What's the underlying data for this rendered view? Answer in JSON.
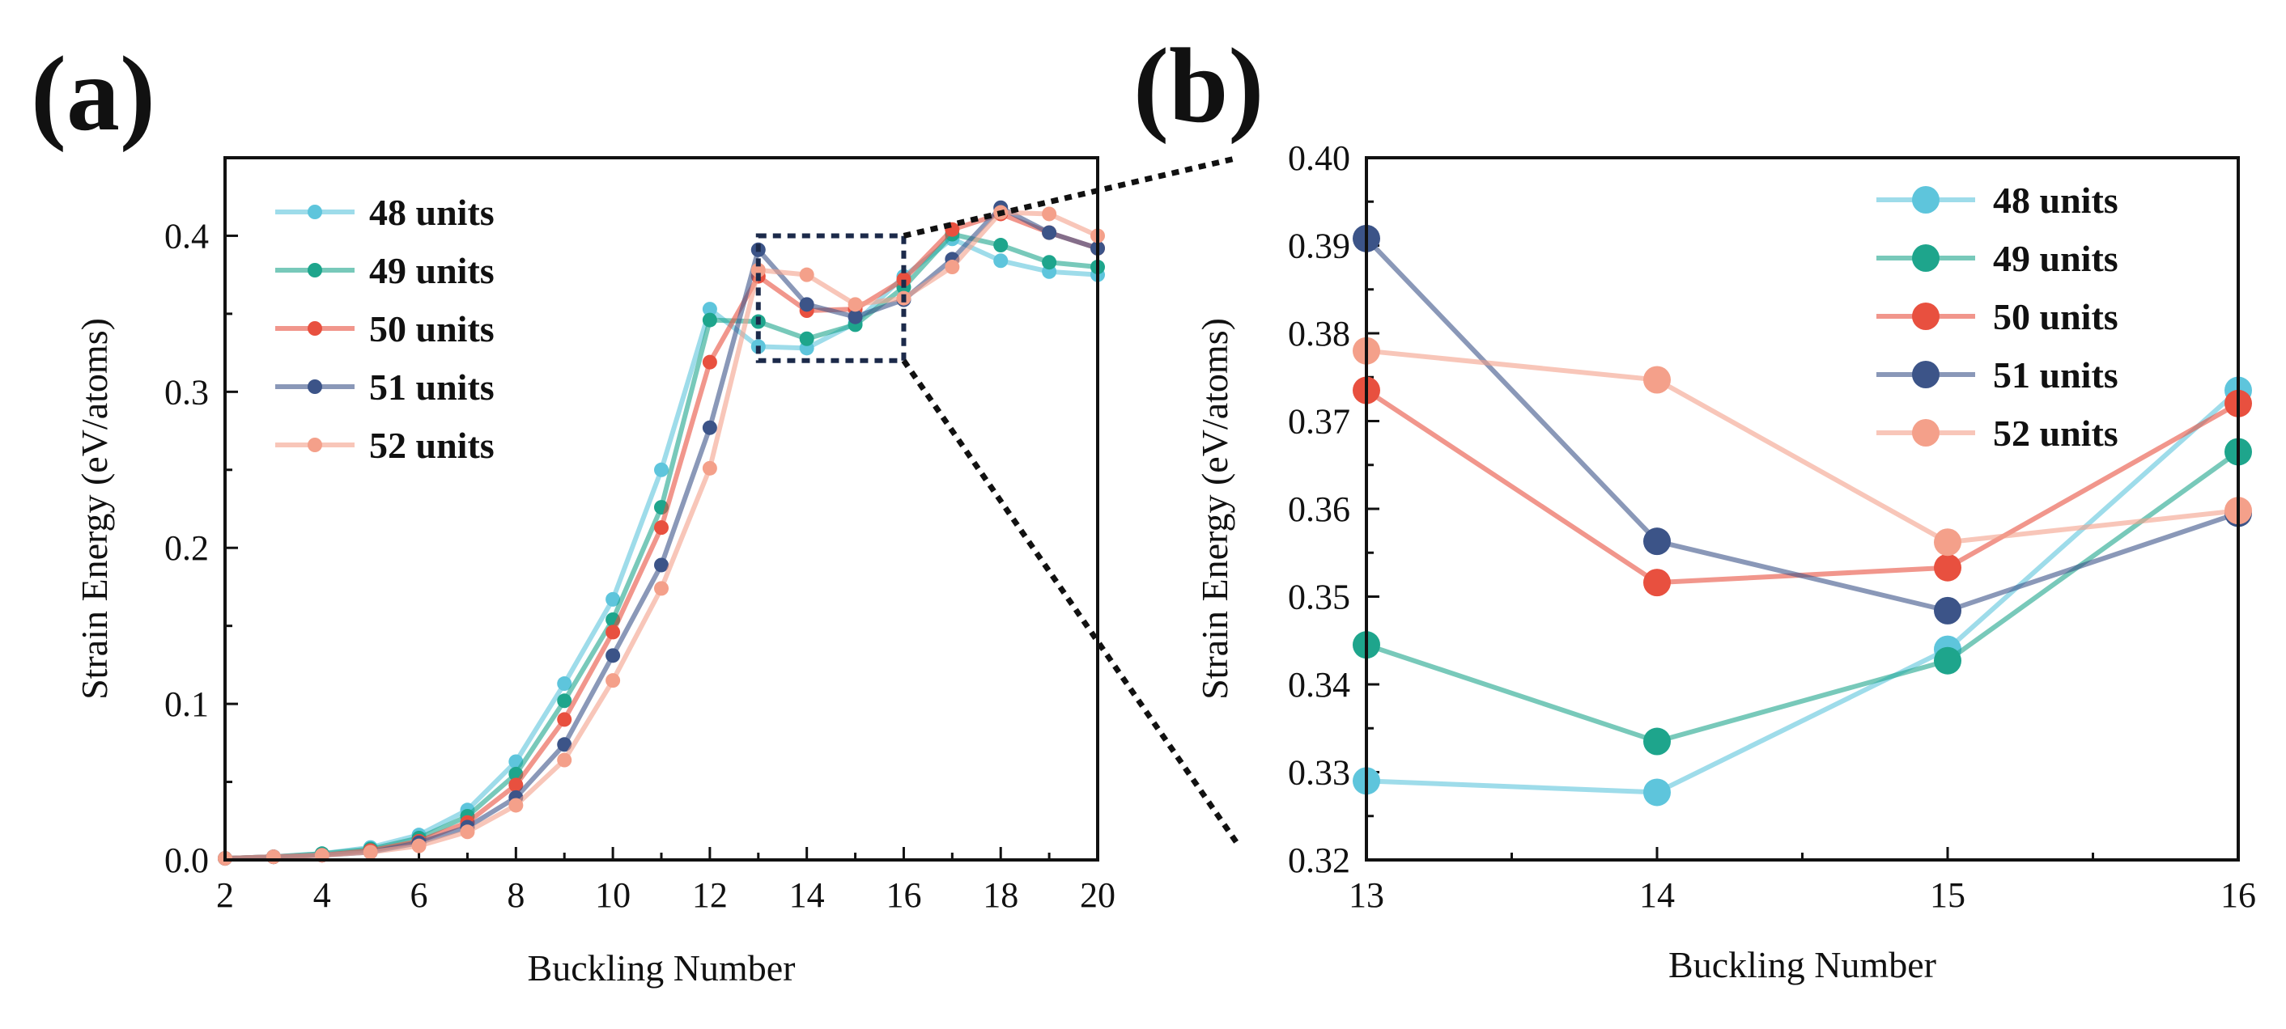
{
  "colors": {
    "48 units": "#5ec5dc",
    "49 units": "#1ea58c",
    "50 units": "#e8503f",
    "51 units": "#3c5488",
    "52 units": "#f4a08a",
    "axis": "#111111",
    "zoom_box": "#1c2a4a"
  },
  "chart_data": [
    {
      "panel": "(a)",
      "type": "line",
      "xlabel": "Buckling Number",
      "ylabel": "Strain Energy (eV/atoms)",
      "xlim": [
        2,
        20
      ],
      "ylim": [
        0,
        0.45
      ],
      "xticks": [
        "2",
        "4",
        "6",
        "8",
        "10",
        "12",
        "14",
        "16",
        "18",
        "20"
      ],
      "yticks": [
        "0.0",
        "0.1",
        "0.2",
        "0.3",
        "0.4"
      ],
      "legend_position": "top-left",
      "zoom_region": {
        "x": [
          13,
          16
        ],
        "y": [
          0.32,
          0.4
        ]
      },
      "x": [
        2,
        3,
        4,
        5,
        6,
        7,
        8,
        9,
        10,
        11,
        12,
        13,
        14,
        15,
        16,
        17,
        18,
        19,
        20
      ],
      "series": [
        {
          "name": "48 units",
          "values": [
            0.001,
            0.002,
            0.004,
            0.008,
            0.016,
            0.032,
            0.063,
            0.113,
            0.167,
            0.25,
            0.353,
            0.329,
            0.328,
            0.344,
            0.374,
            0.398,
            0.384,
            0.377,
            0.375
          ]
        },
        {
          "name": "49 units",
          "values": [
            0.001,
            0.002,
            0.004,
            0.007,
            0.014,
            0.028,
            0.055,
            0.102,
            0.154,
            0.226,
            0.346,
            0.345,
            0.334,
            0.343,
            0.367,
            0.401,
            0.394,
            0.383,
            0.38
          ]
        },
        {
          "name": "50 units",
          "values": [
            0.001,
            0.002,
            0.003,
            0.006,
            0.012,
            0.024,
            0.048,
            0.09,
            0.146,
            0.213,
            0.319,
            0.374,
            0.352,
            0.353,
            0.372,
            0.404,
            0.414,
            0.402,
            0.392
          ]
        },
        {
          "name": "51 units",
          "values": [
            0.001,
            0.002,
            0.003,
            0.005,
            0.011,
            0.021,
            0.04,
            0.074,
            0.131,
            0.189,
            0.277,
            0.391,
            0.356,
            0.348,
            0.359,
            0.385,
            0.418,
            0.402,
            0.392
          ]
        },
        {
          "name": "52 units",
          "values": [
            0.001,
            0.002,
            0.003,
            0.005,
            0.009,
            0.018,
            0.035,
            0.064,
            0.115,
            0.174,
            0.251,
            0.378,
            0.375,
            0.356,
            0.36,
            0.38,
            0.415,
            0.414,
            0.4
          ]
        }
      ]
    },
    {
      "panel": "(b)",
      "type": "line",
      "xlabel": "Buckling Number",
      "ylabel": "Strain Energy (eV/atoms)",
      "xlim": [
        13,
        16
      ],
      "ylim": [
        0.32,
        0.4
      ],
      "xticks": [
        "13",
        "14",
        "15",
        "16"
      ],
      "yticks": [
        "0.32",
        "0.33",
        "0.34",
        "0.35",
        "0.36",
        "0.37",
        "0.38",
        "0.39",
        "0.40"
      ],
      "legend_position": "top-right",
      "x": [
        13,
        14,
        15,
        16
      ],
      "series": [
        {
          "name": "48 units",
          "values": [
            0.329,
            0.3277,
            0.344,
            0.3735
          ]
        },
        {
          "name": "49 units",
          "values": [
            0.3445,
            0.3335,
            0.3427,
            0.3665
          ]
        },
        {
          "name": "50 units",
          "values": [
            0.3735,
            0.3516,
            0.3533,
            0.372
          ]
        },
        {
          "name": "51 units",
          "values": [
            0.3908,
            0.3563,
            0.3484,
            0.3595
          ]
        },
        {
          "name": "52 units",
          "values": [
            0.378,
            0.3747,
            0.3562,
            0.3598
          ]
        }
      ]
    }
  ]
}
